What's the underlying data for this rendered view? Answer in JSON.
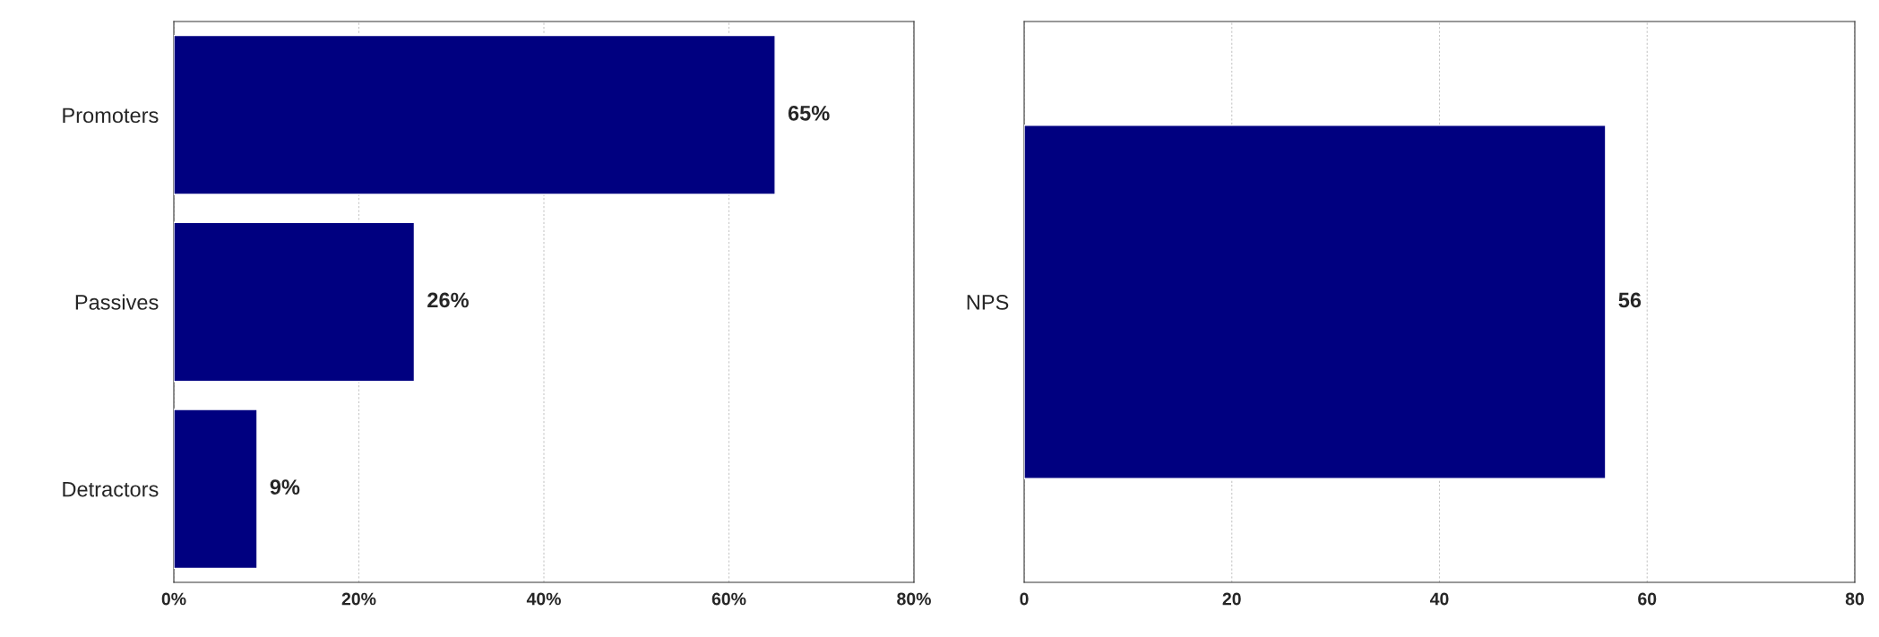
{
  "chart_data": [
    {
      "type": "bar",
      "orientation": "horizontal",
      "categories": [
        "Promoters",
        "Passives",
        "Detractors"
      ],
      "series": [
        {
          "color": "#000080",
          "values": [
            65,
            26,
            9
          ]
        }
      ],
      "value_labels": [
        "65%",
        "26%",
        "9%"
      ],
      "xlim": [
        0,
        80
      ],
      "xticks": [
        {
          "value": 0,
          "label": "0%"
        },
        {
          "value": 20,
          "label": "20%"
        },
        {
          "value": 40,
          "label": "40%"
        },
        {
          "value": 60,
          "label": "60%"
        },
        {
          "value": 80,
          "label": "80%"
        }
      ],
      "grid": "x",
      "legend": false
    },
    {
      "type": "bar",
      "orientation": "horizontal",
      "categories": [
        "NPS"
      ],
      "series": [
        {
          "color": "#000080",
          "values": [
            56
          ]
        }
      ],
      "data_labels": true,
      "xlim": [
        0,
        80
      ],
      "xticks": [
        0,
        20,
        40,
        60,
        80
      ],
      "grid": "x",
      "legend": false
    }
  ]
}
